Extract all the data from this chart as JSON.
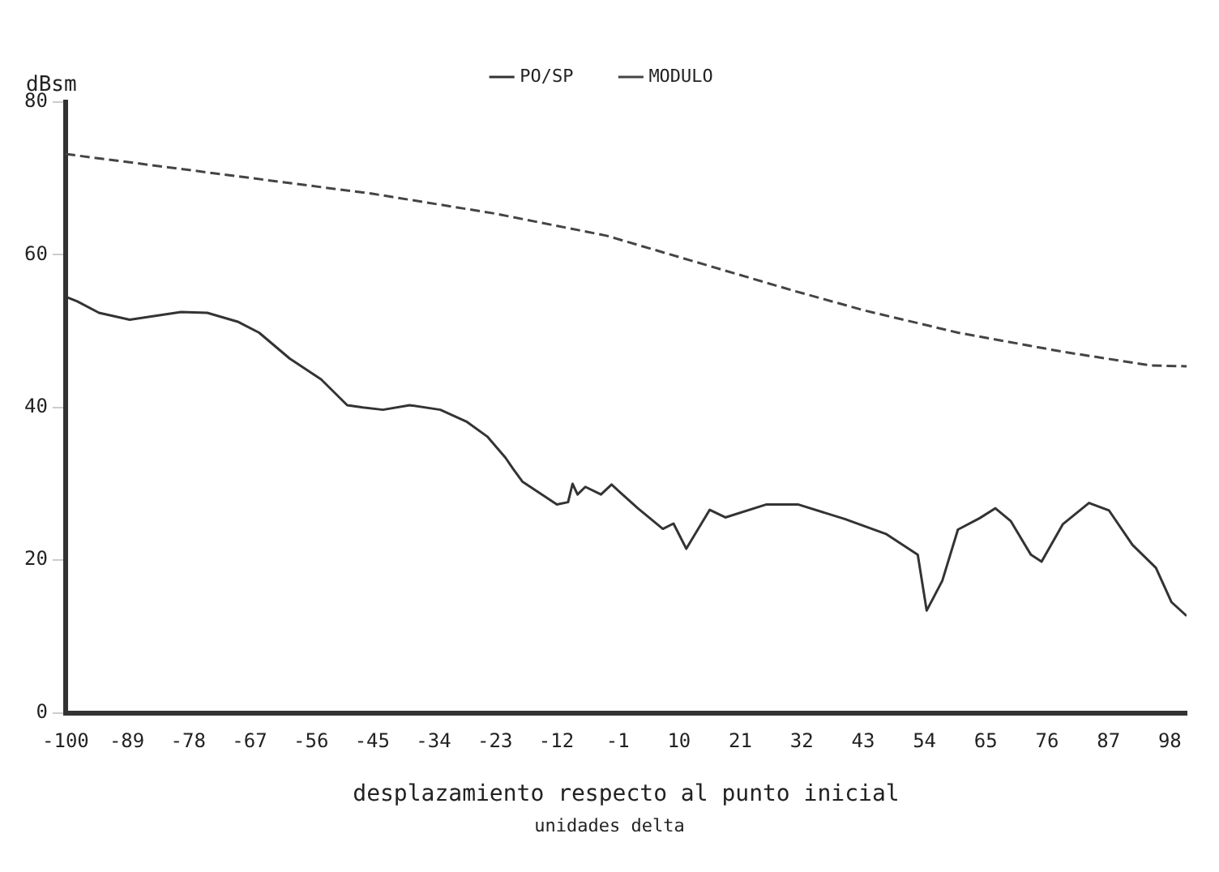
{
  "chart_data": {
    "type": "line",
    "xlabel": "desplazamiento respecto al punto inicial",
    "ylabel": "dBsm",
    "annotations": [
      "unidades delta"
    ],
    "xlim": [
      -100,
      101
    ],
    "xticks": [
      -100,
      -89,
      -78,
      -67,
      -56,
      -45,
      -34,
      -23,
      -12,
      -1,
      10,
      21,
      32,
      43,
      54,
      65,
      76,
      87,
      98
    ],
    "ylim": [
      0,
      80
    ],
    "yticks": [
      0,
      20,
      40,
      60,
      80
    ],
    "grid": false,
    "legend": "top",
    "marker": "none",
    "series": [
      {
        "name": "PO/SP",
        "color": "#333333",
        "line_style": "solid",
        "x": [
          -100,
          -97.9,
          -94,
          -88.5,
          -79.3,
          -74.6,
          -69,
          -65.3,
          -59.8,
          -54.2,
          -49.5,
          -46.7,
          -43.1,
          -38.3,
          -32.8,
          -28,
          -24.4,
          -21.1,
          -19.8,
          -18.1,
          -11.9,
          -9.9,
          -9.1,
          -8.2,
          -6.8,
          -4,
          -2.1,
          2.6,
          7.1,
          9,
          11.3,
          15.5,
          18.3,
          25.7,
          31.3,
          39.7,
          47.2,
          52.8,
          54.4,
          57.2,
          60,
          63.9,
          66.7,
          69.5,
          73.1,
          75,
          78.8,
          83.5,
          87.1,
          91.3,
          95.5,
          98.3,
          101
        ],
        "values": [
          54.5,
          53.9,
          52.4,
          51.5,
          52.5,
          52.4,
          51.2,
          49.8,
          46.4,
          43.7,
          40.3,
          40,
          39.7,
          40.3,
          39.7,
          38.1,
          36.2,
          33.4,
          32,
          30.3,
          27.3,
          27.6,
          30,
          28.6,
          29.6,
          28.6,
          29.9,
          26.8,
          24.1,
          24.8,
          21.5,
          26.6,
          25.6,
          27.3,
          27.3,
          25.4,
          23.4,
          20.7,
          13.4,
          17.3,
          24,
          25.5,
          26.8,
          25.1,
          20.7,
          19.8,
          24.7,
          27.5,
          26.5,
          22,
          19,
          14.5,
          12.7
        ]
      },
      {
        "name": "MODULO",
        "color": "#444444",
        "line_style": "dashed",
        "x": [
          -100,
          -45,
          -23,
          -3,
          30.5,
          43.3,
          60,
          78.8,
          94.6,
          101
        ],
        "values": [
          73.2,
          68,
          65.4,
          62.5,
          55.3,
          52.7,
          49.8,
          47.3,
          45.5,
          45.4
        ]
      }
    ]
  }
}
